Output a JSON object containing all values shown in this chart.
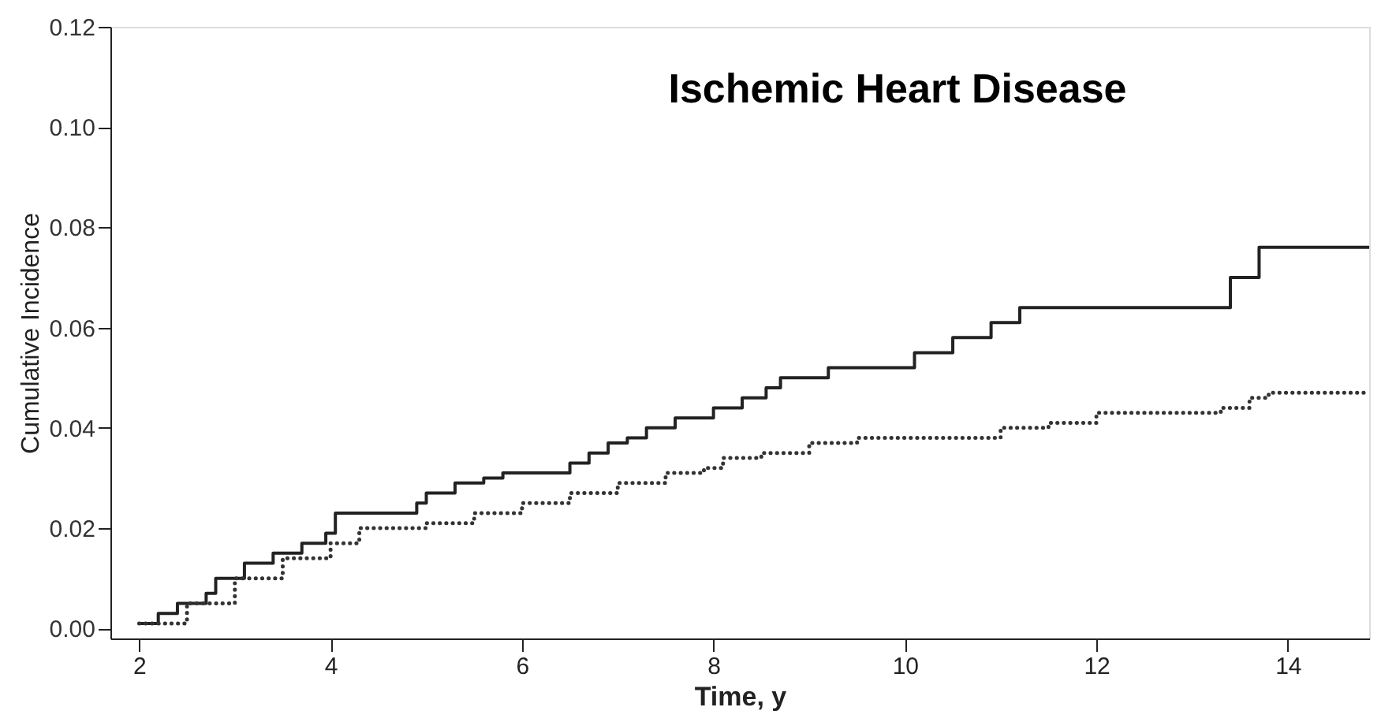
{
  "chart_data": {
    "type": "step",
    "title": "Ischemic Heart Disease",
    "xlabel": "Time, y",
    "ylabel": "Cumulative Incidence",
    "xlim": [
      1.7,
      14.85
    ],
    "xticks": [
      2,
      4,
      6,
      8,
      10,
      12,
      14
    ],
    "ylim": [
      -0.002,
      0.12
    ],
    "yticks": [
      {
        "value": 0,
        "label": "0.00"
      },
      {
        "value": 0.02,
        "label": "0.02"
      },
      {
        "value": 0.04,
        "label": "0.04"
      },
      {
        "value": 0.06,
        "label": "0.06"
      },
      {
        "value": 0.08,
        "label": "0.08"
      },
      {
        "value": 0.1,
        "label": "0.10"
      },
      {
        "value": 0.12,
        "label": "0.12"
      }
    ],
    "grid": false,
    "marker": "none",
    "series": [
      {
        "color": "#222222",
        "line_style": "solid",
        "x": [
          2.0,
          2.2,
          2.4,
          2.7,
          2.8,
          3.1,
          3.4,
          3.7,
          3.95,
          4.05,
          4.9,
          5.0,
          5.3,
          5.6,
          5.8,
          6.5,
          6.7,
          6.9,
          7.1,
          7.3,
          7.6,
          8.0,
          8.3,
          8.55,
          8.7,
          9.2,
          10.1,
          10.5,
          10.9,
          11.2,
          13.4,
          13.7,
          14.85
        ],
        "values": [
          0.001,
          0.003,
          0.005,
          0.007,
          0.01,
          0.013,
          0.015,
          0.017,
          0.019,
          0.023,
          0.025,
          0.027,
          0.029,
          0.03,
          0.031,
          0.033,
          0.035,
          0.037,
          0.038,
          0.04,
          0.042,
          0.044,
          0.046,
          0.048,
          0.05,
          0.052,
          0.055,
          0.058,
          0.061,
          0.064,
          0.07,
          0.076,
          0.076
        ]
      },
      {
        "color": "#333333",
        "line_style": "dotted",
        "x": [
          2.0,
          2.5,
          3.0,
          3.5,
          4.0,
          4.3,
          5.0,
          5.5,
          6.0,
          6.5,
          7.0,
          7.5,
          7.9,
          8.1,
          8.5,
          9.0,
          9.5,
          10.5,
          11.0,
          11.5,
          12.0,
          13.0,
          13.3,
          13.6,
          13.8,
          14.85
        ],
        "values": [
          0.001,
          0.005,
          0.01,
          0.014,
          0.017,
          0.02,
          0.021,
          0.023,
          0.025,
          0.027,
          0.029,
          0.031,
          0.032,
          0.034,
          0.035,
          0.037,
          0.038,
          0.038,
          0.04,
          0.041,
          0.043,
          0.043,
          0.044,
          0.046,
          0.047,
          0.047
        ]
      }
    ]
  }
}
